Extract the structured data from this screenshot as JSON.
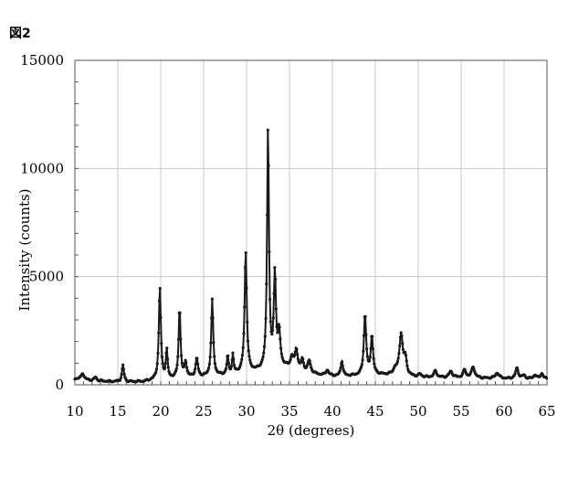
{
  "figure_label": "図2",
  "chart_data": {
    "type": "line",
    "title": "",
    "xlabel": "2θ (degrees)",
    "ylabel": "Intensity (counts)",
    "xlim": [
      10,
      65
    ],
    "ylim": [
      0,
      15000
    ],
    "x_ticks": [
      10,
      15,
      20,
      25,
      30,
      35,
      40,
      45,
      50,
      55,
      60,
      65
    ],
    "y_ticks": [
      0,
      5000,
      10000,
      15000
    ],
    "grid": true,
    "legend": "none",
    "marker": "filled circle",
    "color": "#1a1a1a",
    "baseline": [
      [
        10,
        280
      ],
      [
        12,
        200
      ],
      [
        14,
        150
      ],
      [
        16,
        130
      ],
      [
        18,
        140
      ],
      [
        19,
        200
      ],
      [
        21,
        260
      ],
      [
        23,
        320
      ],
      [
        25,
        360
      ],
      [
        27,
        420
      ],
      [
        29,
        520
      ],
      [
        31,
        600
      ],
      [
        32,
        650
      ],
      [
        34,
        800
      ],
      [
        35,
        760
      ],
      [
        37,
        540
      ],
      [
        39,
        420
      ],
      [
        41,
        380
      ],
      [
        43,
        420
      ],
      [
        45,
        460
      ],
      [
        47,
        440
      ],
      [
        49,
        360
      ],
      [
        52,
        330
      ],
      [
        55,
        320
      ],
      [
        58,
        300
      ],
      [
        61,
        280
      ],
      [
        65,
        260
      ]
    ],
    "peaks": [
      {
        "x": 10.9,
        "height": 300,
        "width": 0.18
      },
      {
        "x": 12.4,
        "height": 160,
        "width": 0.16
      },
      {
        "x": 15.6,
        "height": 760,
        "width": 0.14
      },
      {
        "x": 19.9,
        "height": 4250,
        "width": 0.14
      },
      {
        "x": 20.7,
        "height": 1300,
        "width": 0.12
      },
      {
        "x": 22.2,
        "height": 3250,
        "width": 0.13
      },
      {
        "x": 22.9,
        "height": 700,
        "width": 0.15
      },
      {
        "x": 24.2,
        "height": 850,
        "width": 0.16
      },
      {
        "x": 26.0,
        "height": 3500,
        "width": 0.14
      },
      {
        "x": 27.8,
        "height": 850,
        "width": 0.11
      },
      {
        "x": 28.4,
        "height": 850,
        "width": 0.11
      },
      {
        "x": 29.9,
        "height": 5600,
        "width": 0.15
      },
      {
        "x": 32.5,
        "height": 11200,
        "width": 0.13
      },
      {
        "x": 33.3,
        "height": 4300,
        "width": 0.15
      },
      {
        "x": 33.8,
        "height": 1500,
        "width": 0.16
      },
      {
        "x": 35.3,
        "height": 500,
        "width": 0.2
      },
      {
        "x": 35.8,
        "height": 900,
        "width": 0.18
      },
      {
        "x": 36.5,
        "height": 500,
        "width": 0.18
      },
      {
        "x": 37.3,
        "height": 550,
        "width": 0.2
      },
      {
        "x": 39.4,
        "height": 250,
        "width": 0.2
      },
      {
        "x": 41.1,
        "height": 700,
        "width": 0.15
      },
      {
        "x": 43.8,
        "height": 2800,
        "width": 0.16
      },
      {
        "x": 44.6,
        "height": 1800,
        "width": 0.15
      },
      {
        "x": 47.3,
        "height": 250,
        "width": 0.2
      },
      {
        "x": 48.0,
        "height": 1900,
        "width": 0.24
      },
      {
        "x": 48.5,
        "height": 700,
        "width": 0.2
      },
      {
        "x": 50.2,
        "height": 120,
        "width": 0.2
      },
      {
        "x": 52.0,
        "height": 300,
        "width": 0.2
      },
      {
        "x": 53.8,
        "height": 280,
        "width": 0.25
      },
      {
        "x": 55.4,
        "height": 350,
        "width": 0.2
      },
      {
        "x": 56.4,
        "height": 500,
        "width": 0.22
      },
      {
        "x": 59.2,
        "height": 250,
        "width": 0.25
      },
      {
        "x": 61.5,
        "height": 480,
        "width": 0.2
      },
      {
        "x": 62.3,
        "height": 150,
        "width": 0.2
      },
      {
        "x": 63.6,
        "height": 180,
        "width": 0.2
      },
      {
        "x": 64.4,
        "height": 250,
        "width": 0.2
      }
    ],
    "sample_step": 0.08
  }
}
